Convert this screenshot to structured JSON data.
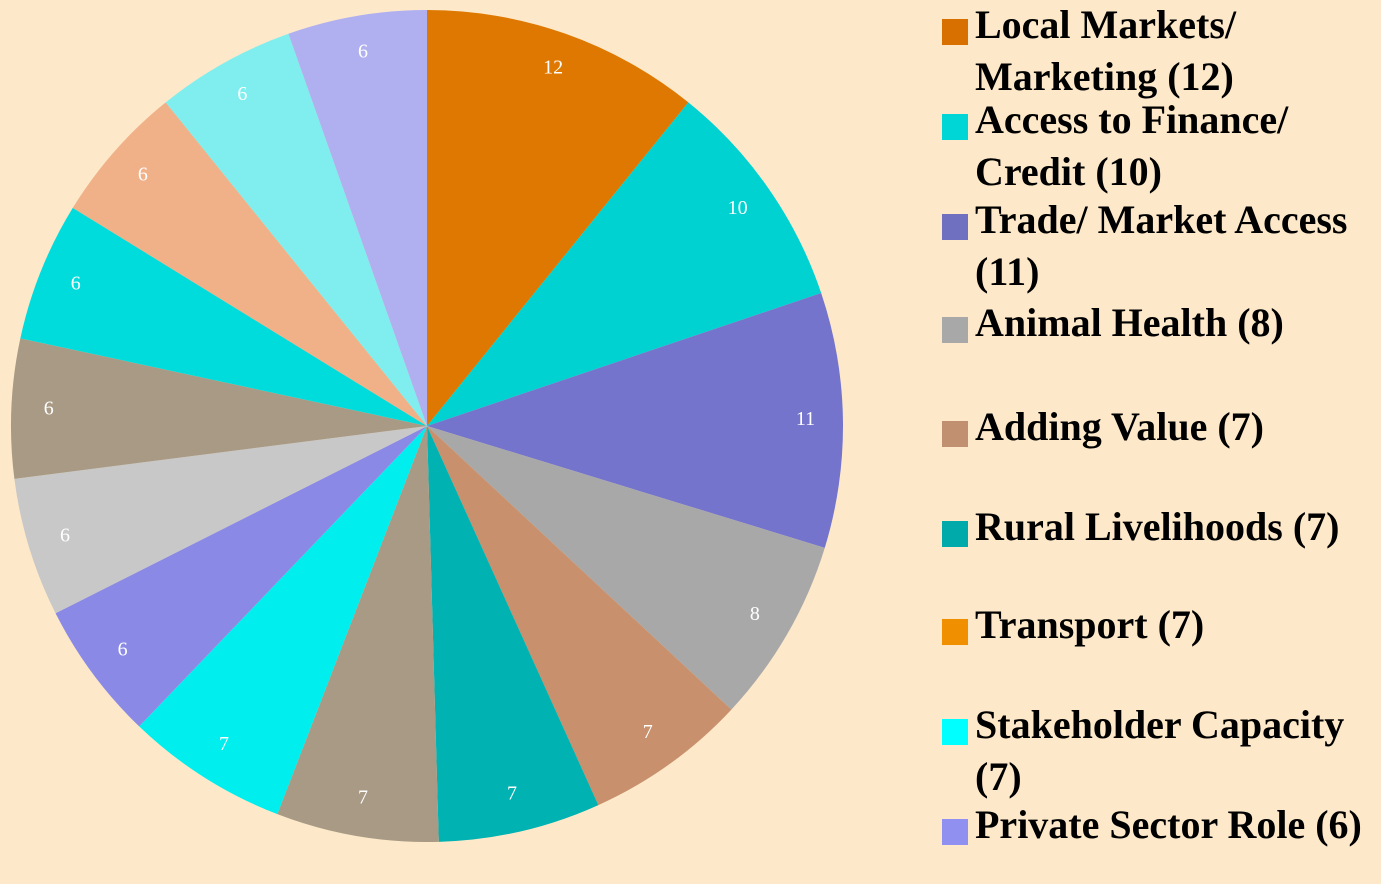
{
  "chart_data": {
    "type": "pie",
    "categories": [
      "Local Markets/ Marketing (12)",
      "Access to Finance/ Credit (10)",
      "Trade/ Market Access (11)",
      "Animal Health (8)",
      "Adding Value (7)",
      "Rural Livelihoods (7)",
      "Transport (7)",
      "Stakeholder Capacity (7)",
      "Private Sector Role (6)",
      null,
      null,
      null,
      null,
      null,
      null
    ],
    "values": [
      12,
      10,
      11,
      8,
      7,
      7,
      7,
      7,
      6,
      6,
      6,
      6,
      6,
      6,
      6
    ],
    "colors": [
      "#de7800",
      "#00d2d2",
      "#7474cc",
      "#a8a8a8",
      "#c8906c",
      "#00b2b2",
      "#a89a84",
      "#00eeee",
      "#8a8ae6",
      "#c8c8c8",
      "#a89a84",
      "#00dcdc",
      "#f0b088",
      "#80eeee",
      "#b0b0f0"
    ],
    "legend_colors": [
      "#d87000",
      "#00d6d6",
      "#7070c0",
      "#a8a8a8",
      "#c09070",
      "#00aaaa",
      "#f09000",
      "#00ffff",
      "#9090f0"
    ]
  }
}
